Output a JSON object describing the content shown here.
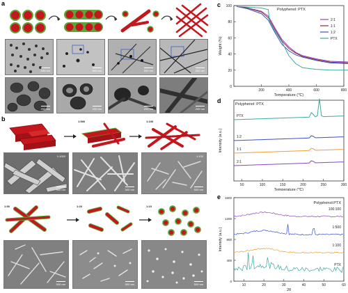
{
  "panel_labels": {
    "a": "a",
    "b": "b",
    "c": "c",
    "d": "d",
    "e": "e"
  },
  "panel_a": {
    "scale_bars_row1": [
      "500 nm",
      "500 nm",
      "500 nm",
      "500 nm"
    ],
    "scale_bars_row2": [
      "200 nm",
      "200 nm",
      "200 nm",
      "200 nm"
    ]
  },
  "panel_b": {
    "top_ratios": [
      "1:500",
      "1:100"
    ],
    "top_scale_bars": [
      "500 nm",
      "500 nm",
      "500 nm"
    ],
    "top_tags": [
      "1:1000",
      "1:100"
    ],
    "bottom_ratios": [
      "1:50",
      "1:20",
      "1:10"
    ],
    "bottom_scale_bars": [
      "500 nm",
      "500 nm",
      "500 nm"
    ]
  },
  "colors": {
    "red": "#c4161c",
    "green": "#5aa53a",
    "purple": "#8e44c4",
    "blue": "#3b4ec8",
    "orange": "#f0a030",
    "teal": "#3ca8a0"
  },
  "chart_data": [
    {
      "type": "line",
      "title": "Polyphenol: PTX",
      "xlabel": "Temperature (℃)",
      "ylabel": "Weight (%)",
      "xlim": [
        0,
        800
      ],
      "ylim": [
        0,
        100
      ],
      "x_ticks": [
        "200",
        "400",
        "600",
        "800"
      ],
      "y_ticks": [
        "0",
        "20",
        "40",
        "60",
        "80",
        "100"
      ],
      "legend_position": "top-right",
      "series": [
        {
          "name": "2:1",
          "color": "#8e44c4",
          "x": [
            20,
            100,
            200,
            250,
            300,
            350,
            400,
            450,
            500,
            600,
            700,
            850
          ],
          "y": [
            99,
            97,
            93,
            87,
            72,
            58,
            49,
            42,
            38,
            34,
            31,
            30
          ]
        },
        {
          "name": "1:1",
          "color": "#8a2a2a",
          "x": [
            20,
            100,
            200,
            250,
            300,
            350,
            400,
            450,
            500,
            600,
            700,
            850
          ],
          "y": [
            99,
            97,
            92,
            85,
            70,
            56,
            47,
            41,
            37,
            33,
            30,
            29
          ]
        },
        {
          "name": "1:2",
          "color": "#3b4ec8",
          "x": [
            20,
            100,
            200,
            250,
            300,
            350,
            400,
            450,
            500,
            600,
            700,
            850
          ],
          "y": [
            99,
            96,
            90,
            82,
            66,
            52,
            44,
            39,
            36,
            32,
            29,
            28
          ]
        },
        {
          "name": "PTX",
          "color": "#3ca8a0",
          "x": [
            20,
            100,
            200,
            250,
            260,
            300,
            350,
            400,
            450,
            500,
            600,
            700,
            850
          ],
          "y": [
            99,
            98,
            97,
            95,
            80,
            68,
            55,
            38,
            28,
            23,
            21,
            20,
            20
          ]
        }
      ]
    },
    {
      "type": "line",
      "title": "Polyphenol: PTX",
      "xlabel": "Temperature (℃)",
      "ylabel": "Intensity (a.u.)",
      "xlim": [
        30,
        300
      ],
      "x_ticks": [
        "50",
        "100",
        "150",
        "200",
        "250",
        "300"
      ],
      "series": [
        {
          "name": "PTX",
          "color": "#3ca8a0"
        },
        {
          "name": "1:2",
          "color": "#3b4ec8"
        },
        {
          "name": "1:1",
          "color": "#f0a030"
        },
        {
          "name": "2:1",
          "color": "#8e44c4"
        }
      ]
    },
    {
      "type": "line",
      "title": "Polyphenol:PTX",
      "xlabel": "2θ",
      "ylabel": "Intensity (a.u.)",
      "xlim": [
        5,
        60
      ],
      "x_ticks": [
        "10",
        "20",
        "30",
        "40",
        "50",
        "60"
      ],
      "y_ticks": [
        "0",
        "400",
        "800",
        "1200",
        "1600"
      ],
      "series": [
        {
          "name": "100:100",
          "color": "#8e44c4"
        },
        {
          "name": "1:500",
          "color": "#3b4ec8"
        },
        {
          "name": "1:100",
          "color": "#f0a030"
        },
        {
          "name": "PTX",
          "color": "#3ca8a0"
        }
      ]
    }
  ]
}
